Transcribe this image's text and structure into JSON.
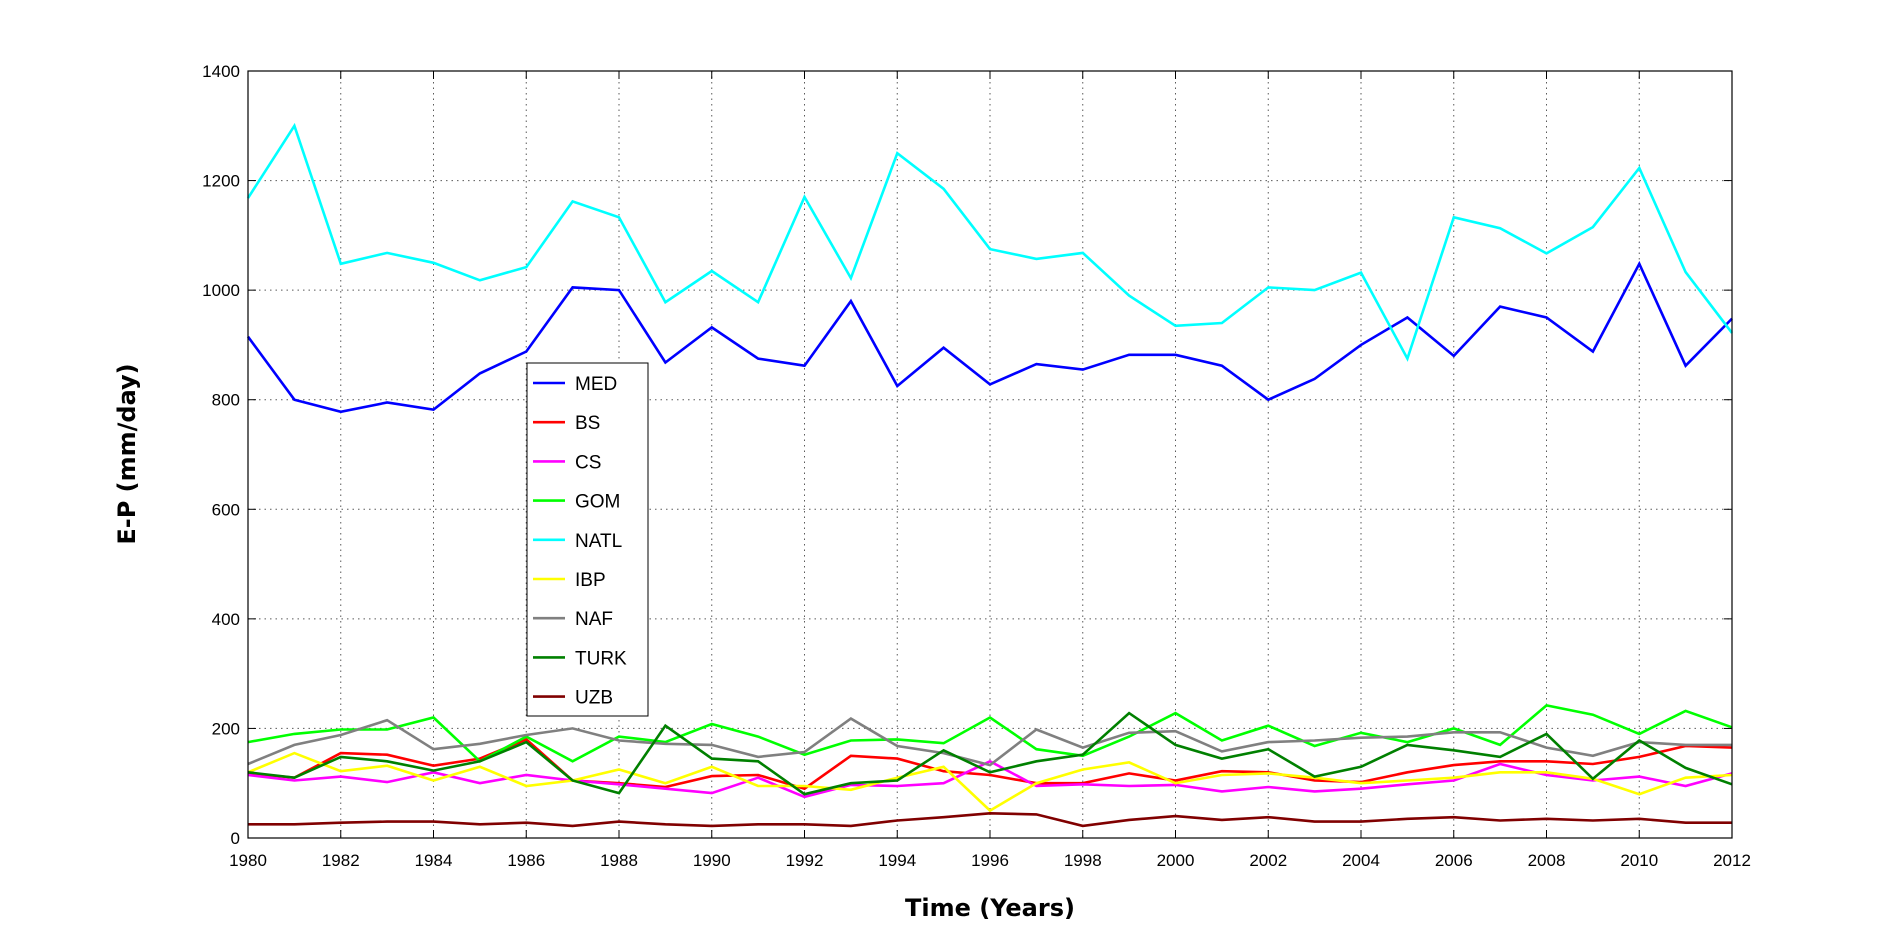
{
  "chart_data": {
    "type": "line",
    "title": "",
    "xlabel": "Time (Years)",
    "ylabel": "E-P (mm/day)",
    "xlim": [
      1980,
      2012
    ],
    "ylim": [
      0,
      1400
    ],
    "x_ticks": [
      1980,
      1982,
      1984,
      1986,
      1988,
      1990,
      1992,
      1994,
      1996,
      1998,
      2000,
      2002,
      2004,
      2006,
      2008,
      2010,
      2012
    ],
    "y_ticks": [
      0,
      200,
      400,
      600,
      800,
      1000,
      1200,
      1400
    ],
    "grid": true,
    "legend_position": "center-left",
    "x": [
      1980,
      1981,
      1982,
      1983,
      1984,
      1985,
      1986,
      1987,
      1988,
      1989,
      1990,
      1991,
      1992,
      1993,
      1994,
      1995,
      1996,
      1997,
      1998,
      1999,
      2000,
      2001,
      2002,
      2003,
      2004,
      2005,
      2006,
      2007,
      2008,
      2009,
      2010,
      2011,
      2012
    ],
    "series": [
      {
        "name": "MED",
        "color": "#0000ff",
        "values": [
          915,
          800,
          778,
          795,
          782,
          848,
          888,
          1005,
          1000,
          868,
          932,
          875,
          862,
          980,
          825,
          895,
          828,
          865,
          855,
          882,
          882,
          862,
          800,
          838,
          900,
          950,
          880,
          970,
          950,
          888,
          1048,
          862,
          948
        ]
      },
      {
        "name": "BS",
        "color": "#ff0000",
        "values": [
          118,
          110,
          155,
          152,
          132,
          145,
          180,
          105,
          100,
          93,
          113,
          115,
          90,
          150,
          145,
          122,
          115,
          100,
          100,
          118,
          105,
          122,
          120,
          105,
          102,
          120,
          133,
          140,
          140,
          135,
          148,
          168,
          165
        ]
      },
      {
        "name": "CS",
        "color": "#ff00ff",
        "values": [
          115,
          105,
          112,
          102,
          120,
          100,
          115,
          105,
          98,
          90,
          82,
          110,
          75,
          97,
          95,
          100,
          140,
          95,
          98,
          95,
          97,
          85,
          93,
          85,
          90,
          98,
          105,
          135,
          115,
          105,
          112,
          95,
          118
        ]
      },
      {
        "name": "GOM",
        "color": "#00ff00",
        "values": [
          175,
          190,
          198,
          198,
          220,
          140,
          185,
          140,
          185,
          175,
          208,
          185,
          152,
          178,
          180,
          173,
          220,
          162,
          150,
          185,
          228,
          178,
          205,
          168,
          192,
          175,
          200,
          170,
          242,
          225,
          190,
          232,
          202
        ]
      },
      {
        "name": "NATL",
        "color": "#00ffff",
        "values": [
          1168,
          1300,
          1048,
          1068,
          1050,
          1018,
          1042,
          1162,
          1133,
          978,
          1035,
          978,
          1170,
          1022,
          1250,
          1185,
          1075,
          1057,
          1068,
          990,
          935,
          940,
          1005,
          1000,
          1032,
          875,
          1133,
          1113,
          1067,
          1115,
          1223,
          1033,
          922
        ]
      },
      {
        "name": "IBP",
        "color": "#ffff00",
        "values": [
          120,
          155,
          122,
          132,
          105,
          130,
          95,
          105,
          125,
          100,
          130,
          95,
          95,
          88,
          110,
          130,
          50,
          100,
          125,
          138,
          100,
          115,
          118,
          110,
          100,
          105,
          110,
          120,
          120,
          108,
          80,
          110,
          115
        ]
      },
      {
        "name": "NAF",
        "color": "#808080",
        "values": [
          135,
          170,
          188,
          215,
          162,
          172,
          188,
          200,
          178,
          172,
          170,
          148,
          157,
          218,
          168,
          155,
          133,
          198,
          165,
          192,
          195,
          158,
          175,
          178,
          183,
          185,
          193,
          193,
          165,
          150,
          175,
          170,
          170
        ]
      },
      {
        "name": "TURK",
        "color": "#008000",
        "values": [
          120,
          110,
          148,
          140,
          123,
          140,
          175,
          105,
          82,
          205,
          145,
          140,
          80,
          100,
          105,
          160,
          120,
          140,
          152,
          228,
          170,
          145,
          162,
          112,
          130,
          170,
          160,
          148,
          190,
          108,
          178,
          128,
          98
        ]
      },
      {
        "name": "UZB",
        "color": "#800000",
        "values": [
          25,
          25,
          28,
          30,
          30,
          25,
          28,
          22,
          30,
          25,
          22,
          25,
          25,
          22,
          32,
          38,
          45,
          43,
          22,
          33,
          40,
          33,
          38,
          30,
          30,
          35,
          38,
          32,
          35,
          32,
          35,
          28,
          28
        ]
      }
    ]
  }
}
